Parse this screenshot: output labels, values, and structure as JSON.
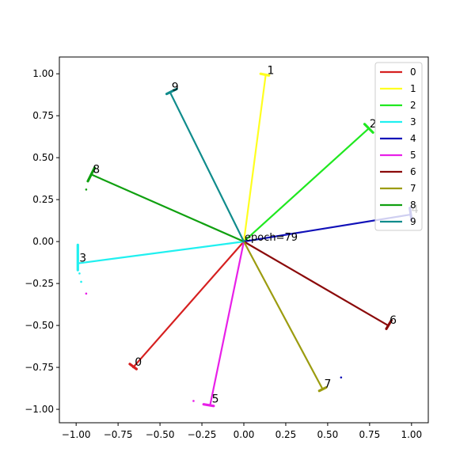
{
  "chart_data": {
    "type": "line",
    "annotation": "epoch=79",
    "xlim": [
      -1.1,
      1.1
    ],
    "ylim": [
      -1.08,
      1.1
    ],
    "x_ticks": [
      -1.0,
      -0.75,
      -0.5,
      -0.25,
      0.0,
      0.25,
      0.5,
      0.75,
      1.0
    ],
    "x_tick_labels": [
      "−1.00",
      "−0.75",
      "−0.50",
      "−0.25",
      "0.00",
      "0.25",
      "0.50",
      "0.75",
      "1.00"
    ],
    "y_ticks": [
      1.0,
      0.75,
      0.5,
      0.25,
      0.0,
      -0.25,
      -0.5,
      -0.75,
      -1.0
    ],
    "y_tick_labels": [
      "1.00",
      "0.75",
      "0.50",
      "0.25",
      "0.00",
      "−0.25",
      "−0.50",
      "−0.75",
      "−1.00"
    ],
    "grid": false,
    "legend_position": "top-right",
    "series": [
      {
        "name": "0",
        "color": "#d62020",
        "x": [
          0.0,
          -0.66
        ],
        "y": [
          0.0,
          -0.75
        ],
        "label": "0",
        "spread": {
          "from": [
            -0.68,
            -0.73
          ],
          "to": [
            -0.64,
            -0.76
          ]
        },
        "scatter": []
      },
      {
        "name": "1",
        "color": "#ffff20",
        "x": [
          0.0,
          0.13
        ],
        "y": [
          0.0,
          0.99
        ],
        "label": "1",
        "spread": {
          "from": [
            0.1,
            1.0
          ],
          "to": [
            0.15,
            0.99
          ]
        },
        "scatter": []
      },
      {
        "name": "2",
        "color": "#20e820",
        "x": [
          0.0,
          0.74
        ],
        "y": [
          0.0,
          0.67
        ],
        "label": "2",
        "spread": {
          "from": [
            0.72,
            0.7
          ],
          "to": [
            0.77,
            0.65
          ]
        },
        "scatter": []
      },
      {
        "name": "3",
        "color": "#20f0f0",
        "x": [
          0.0,
          -0.99
        ],
        "y": [
          0.0,
          -0.13
        ],
        "label": "3",
        "spread": {
          "from": [
            -0.99,
            -0.02
          ],
          "to": [
            -0.99,
            -0.17
          ]
        },
        "scatter": [
          [
            -0.97,
            -0.24
          ],
          [
            -0.98,
            -0.19
          ]
        ]
      },
      {
        "name": "4",
        "color": "#1010b8",
        "x": [
          0.0,
          0.99
        ],
        "y": [
          0.0,
          0.16
        ],
        "label": "4",
        "spread": {
          "from": [
            0.99,
            0.2
          ],
          "to": [
            1.0,
            0.13
          ]
        },
        "scatter": [
          [
            0.58,
            -0.81
          ]
        ]
      },
      {
        "name": "5",
        "color": "#e820e8",
        "x": [
          0.0,
          -0.2
        ],
        "y": [
          0.0,
          -0.97
        ],
        "label": "5",
        "spread": {
          "from": [
            -0.24,
            -0.97
          ],
          "to": [
            -0.18,
            -0.98
          ]
        },
        "scatter": [
          [
            -0.3,
            -0.95
          ],
          [
            -0.94,
            -0.31
          ]
        ]
      },
      {
        "name": "6",
        "color": "#8b0a0a",
        "x": [
          0.0,
          0.86
        ],
        "y": [
          0.0,
          -0.5
        ],
        "label": "6",
        "spread": {
          "from": [
            0.85,
            -0.52
          ],
          "to": [
            0.88,
            -0.47
          ]
        },
        "scatter": []
      },
      {
        "name": "7",
        "color": "#9c9c10",
        "x": [
          0.0,
          0.47
        ],
        "y": [
          0.0,
          -0.88
        ],
        "label": "7",
        "spread": {
          "from": [
            0.45,
            -0.89
          ],
          "to": [
            0.49,
            -0.87
          ]
        },
        "scatter": []
      },
      {
        "name": "8",
        "color": "#10a010",
        "x": [
          0.0,
          -0.91
        ],
        "y": [
          0.0,
          0.4
        ],
        "label": "8",
        "spread": {
          "from": [
            -0.93,
            0.36
          ],
          "to": [
            -0.89,
            0.44
          ]
        },
        "scatter": [
          [
            -0.94,
            0.31
          ]
        ]
      },
      {
        "name": "9",
        "color": "#108c8c",
        "x": [
          0.0,
          -0.44
        ],
        "y": [
          0.0,
          0.89
        ],
        "label": "9",
        "spread": {
          "from": [
            -0.46,
            0.88
          ],
          "to": [
            -0.4,
            0.91
          ]
        },
        "scatter": []
      }
    ]
  }
}
